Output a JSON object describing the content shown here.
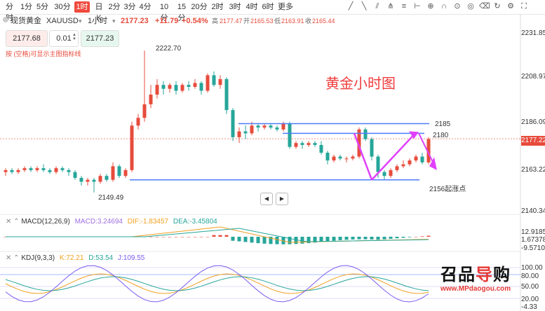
{
  "timeframes": [
    "分时",
    "1分",
    "5分",
    "30分",
    "1时",
    "日K",
    "2分",
    "3分",
    "4分",
    "10分",
    "15分",
    "20分",
    "2时",
    "3时",
    "4时",
    "6时",
    "更多"
  ],
  "active_timeframe": "1时",
  "toolbar_icons": [
    "draw-line-icon",
    "ray-icon",
    "channel-icon",
    "pitchfork-icon",
    "fib-icon",
    "measure-icon",
    "zoom-icon",
    "magnet-icon",
    "lock-icon",
    "visible-icon",
    "delete-icon",
    "rotate-icon",
    "settings-icon",
    "fullscreen-icon"
  ],
  "symbol": {
    "name": "现货黄金",
    "code": "XAUUSD",
    "interval": "1小时",
    "last": "2177.23",
    "change": "+11.79",
    "change_pct": "+0.54%",
    "high_label": "高",
    "high": "2177.47",
    "open_label": "开",
    "open": "2165.53",
    "low_label": "低",
    "low": "2163.91",
    "close_label": "收",
    "close": "2165.44"
  },
  "order": {
    "sell": "2177.68",
    "qty": "0.01",
    "buy": "2177.23"
  },
  "hint": "按 (空格)可显示主图指标线",
  "watermark_title": "黄金小时图",
  "annotations": {
    "high": "2222.70",
    "low": "2149.49",
    "line1": "2185",
    "line2": "2180",
    "line3": "2156起涨点"
  },
  "price_axis": [
    "2231.85",
    "2208.97",
    "2186.09",
    "2163.22",
    "2140.34"
  ],
  "current_price": "2177.22",
  "macd": {
    "label": "MACD(12,26,9)",
    "macd": "MACD:3.24694",
    "dif": "DIF:-1.83457",
    "dea": "DEA:-3.45804",
    "axis": [
      "12.91859",
      "1.67378",
      "-9.57103"
    ]
  },
  "kdj": {
    "label": "KDJ(9,3,3)",
    "k": "K:72.21",
    "d": "D:53.54",
    "j": "J:109.55",
    "axis": [
      "100.00",
      "80.00",
      "50.00",
      "20.00",
      "-4.33"
    ]
  },
  "logo": {
    "brand": "MPdaogou.com",
    "url": "www.MPdaogou.com"
  },
  "colors": {
    "up": "#e74c3c",
    "down": "#26a69a",
    "accent": "#f04a3e",
    "ma_blue": "#4d7cfe",
    "arrow": "#e040fb",
    "title": "#f03c3c"
  },
  "chart_data": {
    "type": "candlestick",
    "y_range": [
      2140.34,
      2231.85
    ],
    "candles": [
      [
        2160,
        2161,
        2158,
        2162
      ],
      [
        2161,
        2160,
        2159,
        2162
      ],
      [
        2160,
        2161,
        2159,
        2162
      ],
      [
        2161,
        2162,
        2160,
        2163
      ],
      [
        2162,
        2161,
        2160,
        2163
      ],
      [
        2161,
        2162,
        2160,
        2163
      ],
      [
        2162,
        2161,
        2160,
        2164
      ],
      [
        2161,
        2160,
        2159,
        2162
      ],
      [
        2160,
        2162,
        2159,
        2163
      ],
      [
        2162,
        2161,
        2160,
        2163
      ],
      [
        2161,
        2160,
        2158,
        2162
      ],
      [
        2160,
        2157,
        2156,
        2161
      ],
      [
        2157,
        2155,
        2153,
        2158
      ],
      [
        2155,
        2156,
        2153,
        2157
      ],
      [
        2156,
        2155,
        2149.49,
        2157
      ],
      [
        2155,
        2158,
        2154,
        2159
      ],
      [
        2158,
        2156,
        2155,
        2159
      ],
      [
        2156,
        2163,
        2155,
        2165
      ],
      [
        2163,
        2158,
        2157,
        2164
      ],
      [
        2158,
        2161,
        2157,
        2162
      ],
      [
        2161,
        2184,
        2160,
        2186
      ],
      [
        2184,
        2188,
        2182,
        2190
      ],
      [
        2188,
        2195,
        2186,
        2222.7
      ],
      [
        2195,
        2200,
        2193,
        2205
      ],
      [
        2200,
        2205,
        2198,
        2208
      ],
      [
        2205,
        2203,
        2200,
        2207
      ],
      [
        2203,
        2205,
        2201,
        2206
      ],
      [
        2205,
        2202,
        2200,
        2207
      ],
      [
        2202,
        2205,
        2201,
        2206
      ],
      [
        2205,
        2204,
        2202,
        2207
      ],
      [
        2204,
        2206,
        2203,
        2208
      ],
      [
        2206,
        2202,
        2200,
        2207
      ],
      [
        2202,
        2210,
        2201,
        2211
      ],
      [
        2210,
        2205,
        2204,
        2212
      ],
      [
        2205,
        2208,
        2203,
        2210
      ],
      [
        2208,
        2192,
        2190,
        2209
      ],
      [
        2192,
        2178,
        2176,
        2193
      ],
      [
        2178,
        2181,
        2175,
        2183
      ],
      [
        2181,
        2180,
        2177,
        2184
      ],
      [
        2180,
        2184,
        2179,
        2186
      ],
      [
        2184,
        2183,
        2181,
        2185
      ],
      [
        2183,
        2184,
        2182,
        2185
      ],
      [
        2184,
        2183,
        2182,
        2185
      ],
      [
        2183,
        2182,
        2181,
        2184
      ],
      [
        2182,
        2185,
        2181,
        2186
      ],
      [
        2185,
        2173,
        2172,
        2186
      ],
      [
        2173,
        2175,
        2172,
        2176
      ],
      [
        2175,
        2174,
        2172,
        2176
      ],
      [
        2174,
        2175,
        2173,
        2176
      ],
      [
        2175,
        2174,
        2173,
        2176
      ],
      [
        2174,
        2170,
        2169,
        2176
      ],
      [
        2170,
        2166,
        2164,
        2171
      ],
      [
        2166,
        2168,
        2165,
        2169
      ],
      [
        2168,
        2167,
        2166,
        2169
      ],
      [
        2167,
        2167,
        2165,
        2168
      ],
      [
        2167,
        2168,
        2166,
        2169
      ],
      [
        2168,
        2182,
        2167,
        2183
      ],
      [
        2182,
        2177,
        2176,
        2183
      ],
      [
        2177,
        2168,
        2166,
        2178
      ],
      [
        2168,
        2160,
        2157,
        2169
      ],
      [
        2160,
        2158,
        2156,
        2161
      ],
      [
        2158,
        2161,
        2157,
        2162
      ],
      [
        2161,
        2163,
        2160,
        2164
      ],
      [
        2163,
        2164,
        2162,
        2166
      ],
      [
        2164,
        2166,
        2163,
        2167
      ],
      [
        2166,
        2168,
        2165,
        2169
      ],
      [
        2168,
        2165,
        2164,
        2170
      ],
      [
        2165,
        2177,
        2164,
        2178
      ]
    ]
  }
}
